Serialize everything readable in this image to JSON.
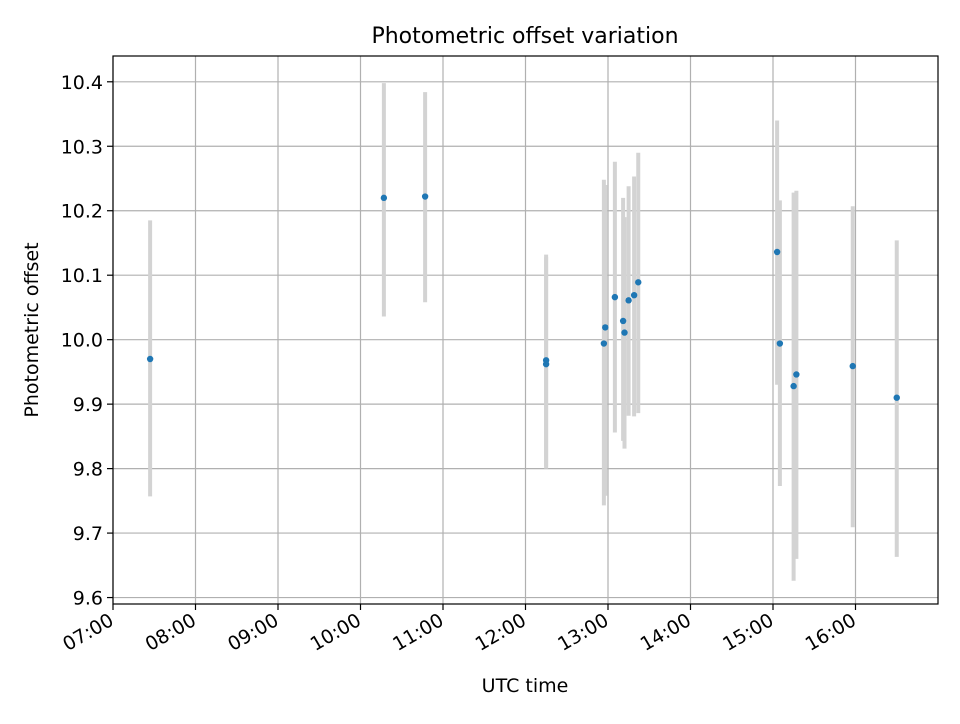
{
  "chart_data": {
    "type": "scatter",
    "title": "Photometric offset variation",
    "xlabel": "UTC time",
    "ylabel": "Photometric offset",
    "x_axis_type": "time",
    "xlim": [
      "07:00",
      "17:00"
    ],
    "ylim": [
      9.59,
      10.44
    ],
    "x_ticks": [
      "07:00",
      "08:00",
      "09:00",
      "10:00",
      "11:00",
      "12:00",
      "13:00",
      "14:00",
      "15:00",
      "16:00"
    ],
    "y_ticks": [
      9.6,
      9.7,
      9.8,
      9.9,
      10.0,
      10.1,
      10.2,
      10.3,
      10.4
    ],
    "y_tick_labels": [
      "9.6",
      "9.7",
      "9.8",
      "9.9",
      "10.0",
      "10.1",
      "10.2",
      "10.3",
      "10.4"
    ],
    "grid": true,
    "legend": null,
    "colors": {
      "points": "#1f77b4",
      "error_bars": "#d3d3d3",
      "grid": "#b0b0b0"
    },
    "points": [
      {
        "time": "07:27",
        "y": 9.97,
        "err_low": 9.757,
        "err_high": 10.185
      },
      {
        "time": "10:17",
        "y": 10.22,
        "err_low": 10.036,
        "err_high": 10.398
      },
      {
        "time": "10:47",
        "y": 10.222,
        "err_low": 10.058,
        "err_high": 10.384
      },
      {
        "time": "12:15",
        "y": 9.968,
        "err_low": 9.8,
        "err_high": 10.132
      },
      {
        "time": "12:15",
        "y": 9.962,
        "err_low": 9.803,
        "err_high": 10.128
      },
      {
        "time": "12:57",
        "y": 9.994,
        "err_low": 9.743,
        "err_high": 10.248
      },
      {
        "time": "12:58",
        "y": 10.019,
        "err_low": 9.758,
        "err_high": 10.24
      },
      {
        "time": "13:05",
        "y": 10.066,
        "err_low": 9.856,
        "err_high": 10.276
      },
      {
        "time": "13:11",
        "y": 10.029,
        "err_low": 9.843,
        "err_high": 10.22
      },
      {
        "time": "13:12",
        "y": 10.011,
        "err_low": 9.831,
        "err_high": 10.19
      },
      {
        "time": "13:15",
        "y": 10.061,
        "err_low": 9.882,
        "err_high": 10.238
      },
      {
        "time": "13:19",
        "y": 10.069,
        "err_low": 9.881,
        "err_high": 10.253
      },
      {
        "time": "13:22",
        "y": 10.089,
        "err_low": 9.886,
        "err_high": 10.29
      },
      {
        "time": "15:03",
        "y": 10.136,
        "err_low": 9.93,
        "err_high": 10.34
      },
      {
        "time": "15:05",
        "y": 9.994,
        "err_low": 9.773,
        "err_high": 10.216
      },
      {
        "time": "15:15",
        "y": 9.928,
        "err_low": 9.626,
        "err_high": 10.228
      },
      {
        "time": "15:17",
        "y": 9.946,
        "err_low": 9.66,
        "err_high": 10.231
      },
      {
        "time": "15:58",
        "y": 9.959,
        "err_low": 9.709,
        "err_high": 10.207
      },
      {
        "time": "16:30",
        "y": 9.91,
        "err_low": 9.663,
        "err_high": 10.154
      }
    ]
  }
}
